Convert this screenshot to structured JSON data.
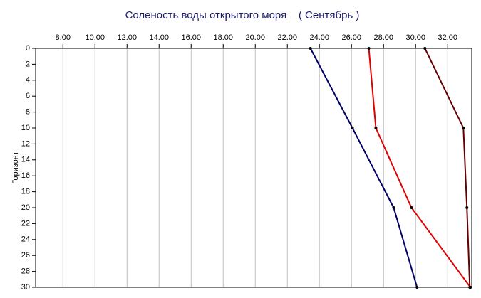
{
  "chart_data": {
    "type": "line",
    "title": "Соленость воды открытого моря    ( Сентябрь )",
    "ylabel": "Горизонт",
    "y": [
      0,
      10,
      20,
      30
    ],
    "series": [
      {
        "color": "#000066",
        "x": [
          23.44,
          26.06,
          28.63,
          30.09
        ]
      },
      {
        "color": "#e00000",
        "x": [
          27.08,
          27.52,
          29.74,
          33.42
        ]
      },
      {
        "color": "#660000",
        "x": [
          30.58,
          32.98,
          33.2,
          33.38
        ]
      }
    ],
    "xlim": [
      6.3,
      33.5
    ],
    "xticks": [
      {
        "value": 8,
        "label": "8.00"
      },
      {
        "value": 10,
        "label": "10.00"
      },
      {
        "value": 12,
        "label": "12.00"
      },
      {
        "value": 14,
        "label": "14.00"
      },
      {
        "value": 16,
        "label": "16.00"
      },
      {
        "value": 18,
        "label": "18.00"
      },
      {
        "value": 20,
        "label": "20.00"
      },
      {
        "value": 22,
        "label": "22.00"
      },
      {
        "value": 24,
        "label": "24.00"
      },
      {
        "value": 26,
        "label": "26.00"
      },
      {
        "value": 28,
        "label": "28.00"
      },
      {
        "value": 30,
        "label": "30.00"
      },
      {
        "value": 32,
        "label": "32.00"
      }
    ],
    "ylim": [
      0,
      30
    ],
    "yticks": [
      0,
      2,
      4,
      6,
      8,
      10,
      12,
      14,
      16,
      18,
      20,
      22,
      24,
      26,
      28,
      30
    ],
    "y_inverted": true,
    "x_axis_position": "top",
    "grid": true
  }
}
